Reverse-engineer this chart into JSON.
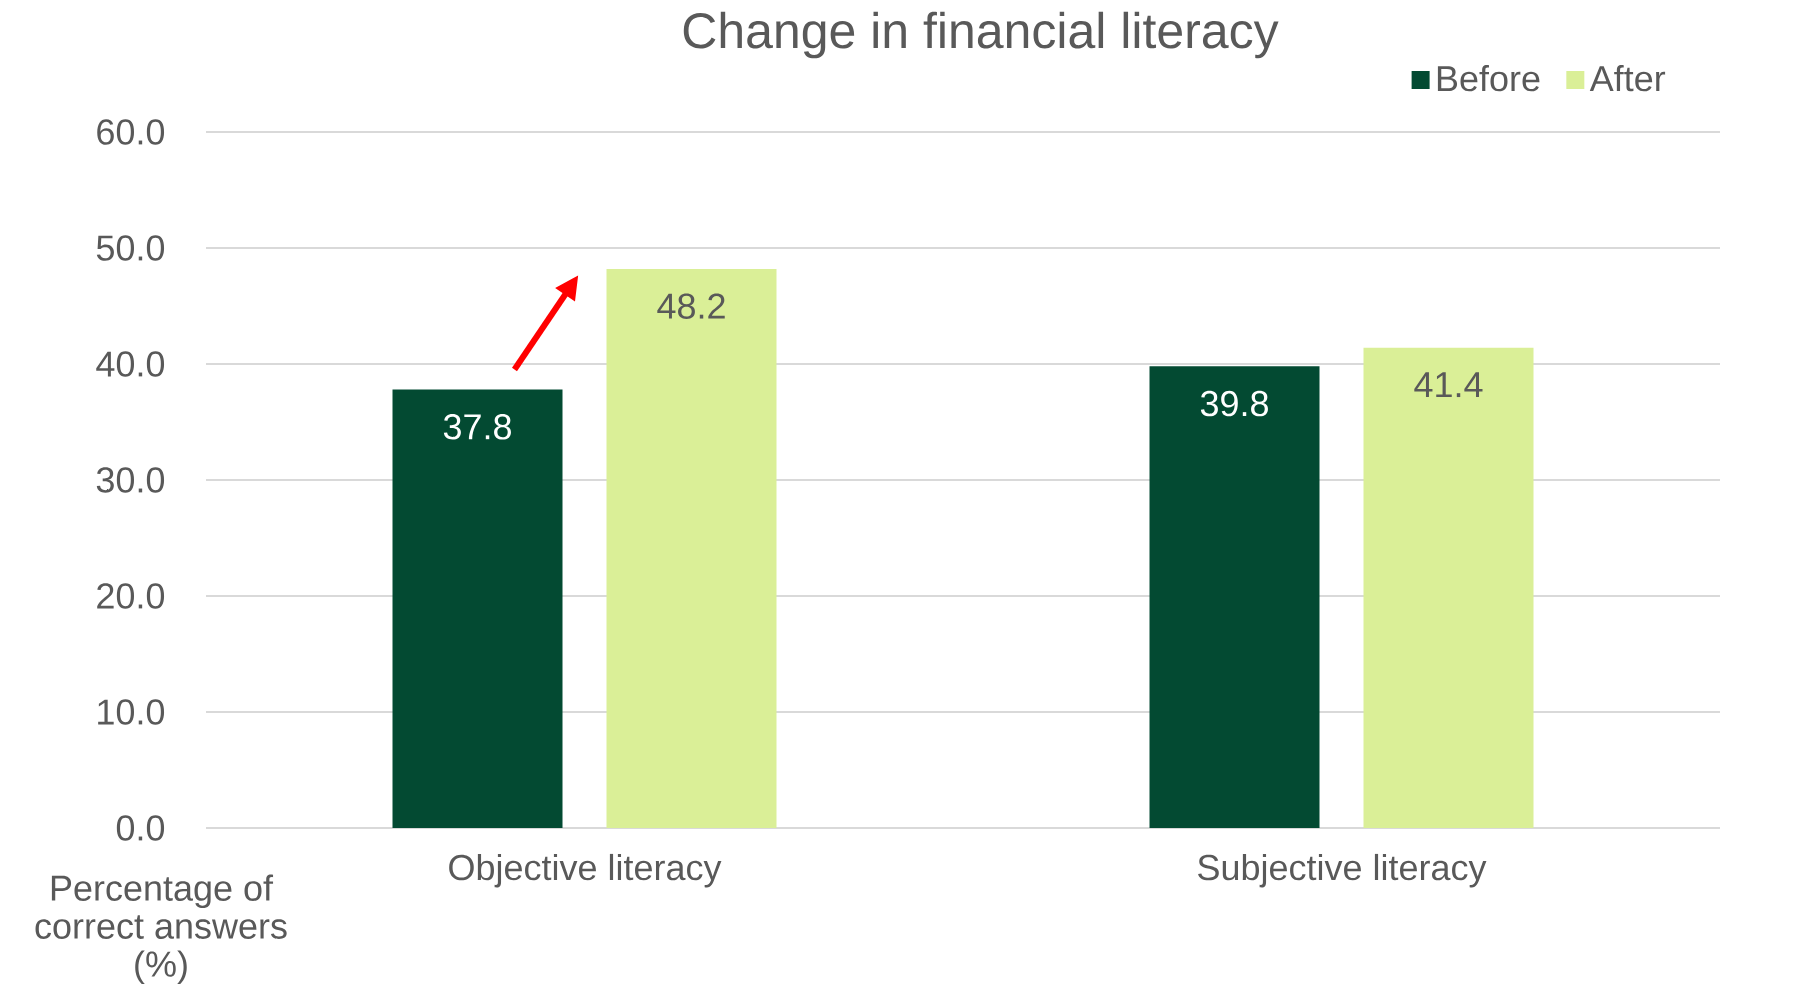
{
  "chart_data": {
    "type": "bar",
    "title": "Change in financial literacy",
    "ylabel": "Percentage of correct answers (%)",
    "categories": [
      "Objective literacy",
      "Subjective literacy"
    ],
    "series": [
      {
        "name": "Before",
        "color": "#034a32",
        "values": [
          37.8,
          39.8
        ]
      },
      {
        "name": "After",
        "color": "#daef97",
        "values": [
          48.2,
          41.4
        ]
      }
    ],
    "ylim": [
      0,
      60
    ],
    "yticks": [
      {
        "value": 0,
        "label": "0.0"
      },
      {
        "value": 10,
        "label": "10.0"
      },
      {
        "value": 20,
        "label": "20.0"
      },
      {
        "value": 30,
        "label": "30.0"
      },
      {
        "value": 40,
        "label": "40.0"
      },
      {
        "value": 50,
        "label": "50.0"
      },
      {
        "value": 60,
        "label": "60.0"
      }
    ],
    "grid": "y",
    "legend": "top right",
    "data_labels": true
  }
}
